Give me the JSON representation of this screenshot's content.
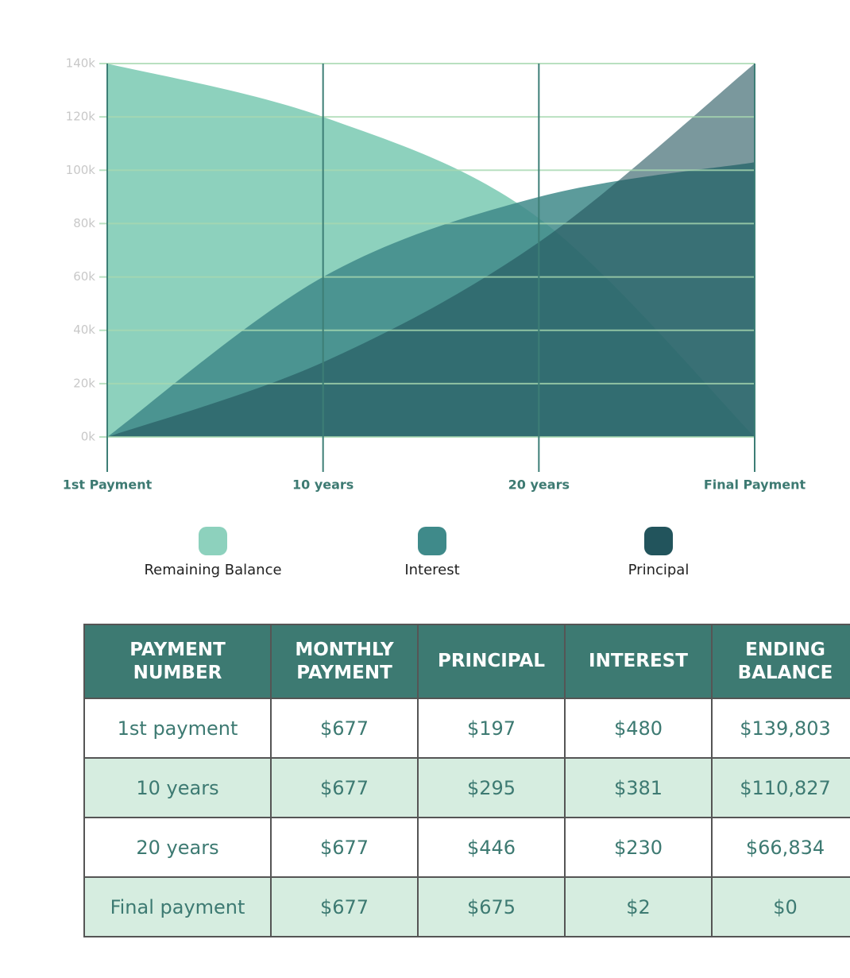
{
  "chart_data": {
    "type": "area",
    "categories": [
      "1st Payment",
      "10 years",
      "20 years",
      "Final Payment"
    ],
    "series": [
      {
        "name": "Remaining Balance",
        "color": "#8dd1bd",
        "values": [
          140000,
          120000,
          82000,
          0
        ]
      },
      {
        "name": "Interest",
        "color": "#3f8a8a",
        "values": [
          0,
          60000,
          90000,
          103000
        ]
      },
      {
        "name": "Principal",
        "color": "#22545c",
        "values": [
          0,
          28000,
          73000,
          140000
        ]
      }
    ],
    "ylim": [
      0,
      140000
    ],
    "yticks": [
      {
        "value": 0,
        "label": "0k"
      },
      {
        "value": 20000,
        "label": "20k"
      },
      {
        "value": 40000,
        "label": "40k"
      },
      {
        "value": 60000,
        "label": "60k"
      },
      {
        "value": 80000,
        "label": "80k"
      },
      {
        "value": 100000,
        "label": "100k"
      },
      {
        "value": 120000,
        "label": "120k"
      },
      {
        "value": 140000,
        "label": "140k"
      }
    ],
    "grid": true
  },
  "table": {
    "header": [
      "PAYMENT NUMBER",
      "MONTHLY PAYMENT",
      "PRINCIPAL",
      "INTEREST",
      "ENDING BALANCE"
    ],
    "rows": [
      [
        "1st payment",
        "$677",
        "$197",
        "$480",
        "$139,803"
      ],
      [
        "10 years",
        "$677",
        "$295",
        "$381",
        "$110,827"
      ],
      [
        "20 years",
        "$677",
        "$446",
        "$230",
        "$66,834"
      ],
      [
        "Final payment",
        "$677",
        "$675",
        "$2",
        "$0"
      ]
    ]
  }
}
